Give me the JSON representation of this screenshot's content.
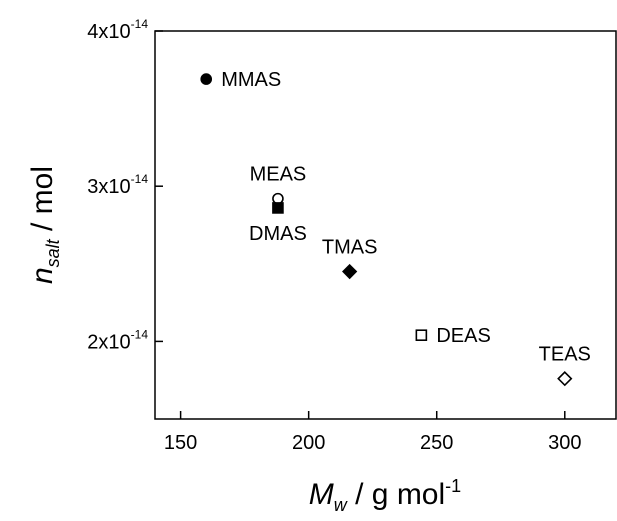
{
  "chart_data": {
    "type": "scatter",
    "xlabel": {
      "main": "M",
      "sub": "w",
      "rest": " / g mol",
      "sup": "-1"
    },
    "ylabel": {
      "main": "n",
      "sub": "salt",
      "rest": " / mol"
    },
    "xlim": [
      140,
      320
    ],
    "ylim": [
      1.5e-14,
      4e-14
    ],
    "x_ticks": [
      {
        "value": 150,
        "label": "150"
      },
      {
        "value": 200,
        "label": "200"
      },
      {
        "value": 250,
        "label": "250"
      },
      {
        "value": 300,
        "label": "300"
      }
    ],
    "y_ticks": [
      {
        "value": 2e-14,
        "mantissa": "2x10",
        "exp": "-14"
      },
      {
        "value": 3e-14,
        "mantissa": "3x10",
        "exp": "-14"
      },
      {
        "value": 4e-14,
        "mantissa": "4x10",
        "exp": "-14"
      }
    ],
    "grid": false,
    "points": [
      {
        "label": "MMAS",
        "x": 160,
        "y": 3.69e-14,
        "marker": "circle",
        "filled": true,
        "label_pos": "right"
      },
      {
        "label": "MEAS",
        "x": 188,
        "y": 2.92e-14,
        "marker": "circle",
        "filled": false,
        "label_pos": "above"
      },
      {
        "label": "DMAS",
        "x": 188,
        "y": 2.86e-14,
        "marker": "square",
        "filled": true,
        "label_pos": "below"
      },
      {
        "label": "TMAS",
        "x": 216,
        "y": 2.45e-14,
        "marker": "diamond",
        "filled": true,
        "label_pos": "above"
      },
      {
        "label": "DEAS",
        "x": 244,
        "y": 2.04e-14,
        "marker": "square",
        "filled": false,
        "label_pos": "right"
      },
      {
        "label": "TEAS",
        "x": 300,
        "y": 1.76e-14,
        "marker": "diamond",
        "filled": false,
        "label_pos": "above"
      }
    ]
  }
}
